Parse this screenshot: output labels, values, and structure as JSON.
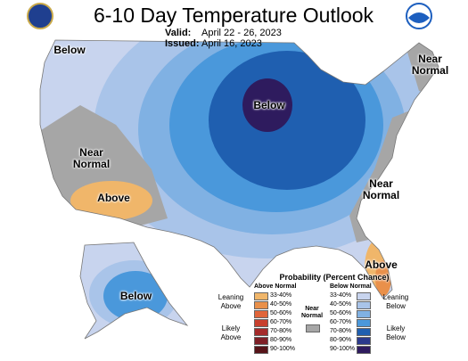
{
  "header": {
    "title": "6-10 Day Temperature Outlook",
    "valid_label": "Valid:",
    "valid": "April 22 - 26, 2023",
    "issued_label": "Issued:",
    "issued": "April 16, 2023"
  },
  "map_labels": [
    "Below",
    "Near Normal",
    "Below",
    "Near Normal",
    "Above",
    "Near Normal",
    "Above",
    "Below"
  ],
  "legend": {
    "title": "Probability (Percent Chance)",
    "above_header": "Above Normal",
    "below_header": "Below Normal",
    "near_label": "Near Normal",
    "near_color": "#a6a6a6",
    "above_ranges": [
      "33-40%",
      "40-50%",
      "50-60%",
      "60-70%",
      "70-80%",
      "80-90%",
      "90-100%"
    ],
    "below_ranges": [
      "33-40%",
      "40-50%",
      "50-60%",
      "60-70%",
      "70-80%",
      "80-90%",
      "90-100%"
    ],
    "above_colors": [
      "#f0b66a",
      "#e9904a",
      "#e0653a",
      "#c8402e",
      "#a52a2a",
      "#7e1f26",
      "#561318"
    ],
    "below_colors": [
      "#c8d4ee",
      "#a9c4e9",
      "#80b1e3",
      "#4a98db",
      "#1f5fb0",
      "#2b3a8c",
      "#2e1b5e"
    ],
    "leaning_above": "Leaning Above",
    "likely_above": "Likely Above",
    "leaning_below": "Leaning Below",
    "likely_below": "Likely Below"
  }
}
